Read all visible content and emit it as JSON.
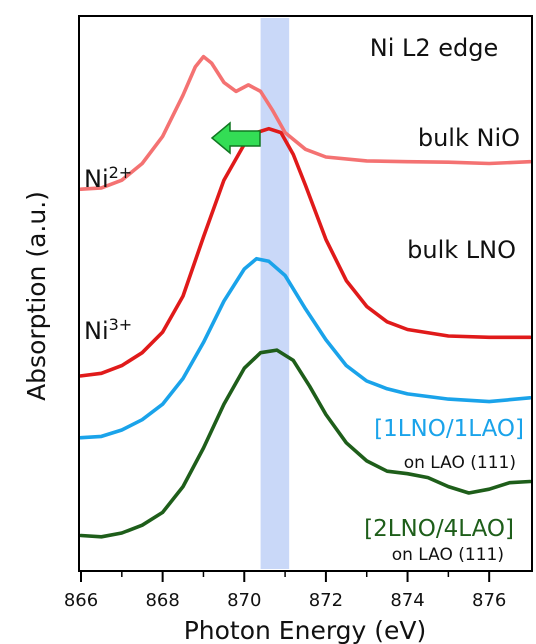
{
  "chart_data": {
    "type": "line",
    "title": "Ni L2 edge",
    "xlabel": "Photon Energy (eV)",
    "ylabel": "Absorption (a.u.)",
    "xlim": [
      866,
      877
    ],
    "xticks": [
      866,
      868,
      870,
      872,
      874,
      876
    ],
    "highlight_band": {
      "x": [
        870.4,
        871.1
      ],
      "color": "#c9d8f8"
    },
    "shift_arrow": {
      "color": "#33dd55",
      "direction": "left"
    },
    "labels": {
      "ni2": "Ni",
      "ni2_sup": "2+",
      "ni3": "Ni",
      "ni3_sup": "3+"
    },
    "series": [
      {
        "name": "bulk NiO",
        "color": "#f47272",
        "points": [
          [
            866.0,
            0.855
          ],
          [
            866.5,
            0.86
          ],
          [
            867.0,
            0.89
          ],
          [
            867.5,
            0.955
          ],
          [
            868.0,
            1.06
          ],
          [
            868.5,
            1.22
          ],
          [
            868.8,
            1.33
          ],
          [
            869.0,
            1.37
          ],
          [
            869.2,
            1.345
          ],
          [
            869.5,
            1.27
          ],
          [
            869.8,
            1.235
          ],
          [
            870.1,
            1.26
          ],
          [
            870.4,
            1.235
          ],
          [
            870.7,
            1.16
          ],
          [
            871.0,
            1.075
          ],
          [
            871.5,
            1.01
          ],
          [
            872.0,
            0.98
          ],
          [
            873.0,
            0.965
          ],
          [
            874.0,
            0.962
          ],
          [
            875.0,
            0.96
          ],
          [
            876.0,
            0.955
          ],
          [
            877.0,
            0.962
          ]
        ]
      },
      {
        "name": "bulk LNO",
        "color": "#e01a1a",
        "points": [
          [
            866.0,
            0.13
          ],
          [
            866.5,
            0.14
          ],
          [
            867.0,
            0.17
          ],
          [
            867.5,
            0.22
          ],
          [
            868.0,
            0.3
          ],
          [
            868.5,
            0.44
          ],
          [
            869.0,
            0.67
          ],
          [
            869.5,
            0.89
          ],
          [
            870.0,
            1.03
          ],
          [
            870.3,
            1.075
          ],
          [
            870.6,
            1.09
          ],
          [
            870.9,
            1.075
          ],
          [
            871.2,
            0.99
          ],
          [
            871.5,
            0.87
          ],
          [
            872.0,
            0.66
          ],
          [
            872.5,
            0.5
          ],
          [
            873.0,
            0.4
          ],
          [
            873.5,
            0.34
          ],
          [
            874.0,
            0.31
          ],
          [
            875.0,
            0.285
          ],
          [
            876.0,
            0.28
          ],
          [
            877.0,
            0.28
          ]
        ]
      },
      {
        "name": "[1LNO/1LAO]",
        "name_sub": "on LAO (111)",
        "color": "#1aa3ea",
        "points": [
          [
            866.0,
            -0.11
          ],
          [
            866.5,
            -0.105
          ],
          [
            867.0,
            -0.08
          ],
          [
            867.5,
            -0.04
          ],
          [
            868.0,
            0.02
          ],
          [
            868.5,
            0.12
          ],
          [
            869.0,
            0.26
          ],
          [
            869.5,
            0.42
          ],
          [
            870.0,
            0.545
          ],
          [
            870.3,
            0.585
          ],
          [
            870.6,
            0.575
          ],
          [
            871.0,
            0.52
          ],
          [
            871.5,
            0.39
          ],
          [
            872.0,
            0.27
          ],
          [
            872.5,
            0.17
          ],
          [
            873.0,
            0.11
          ],
          [
            873.5,
            0.08
          ],
          [
            874.0,
            0.06
          ],
          [
            875.0,
            0.04
          ],
          [
            876.0,
            0.03
          ],
          [
            877.0,
            0.045
          ]
        ]
      },
      {
        "name": "[2LNO/4LAO]",
        "name_sub": "on LAO (111)",
        "color": "#1e5e1a",
        "points": [
          [
            866.0,
            -0.49
          ],
          [
            866.5,
            -0.495
          ],
          [
            867.0,
            -0.48
          ],
          [
            867.5,
            -0.45
          ],
          [
            868.0,
            -0.4
          ],
          [
            868.5,
            -0.3
          ],
          [
            869.0,
            -0.15
          ],
          [
            869.5,
            0.02
          ],
          [
            870.0,
            0.16
          ],
          [
            870.4,
            0.22
          ],
          [
            870.8,
            0.23
          ],
          [
            871.2,
            0.19
          ],
          [
            871.6,
            0.09
          ],
          [
            872.0,
            -0.02
          ],
          [
            872.5,
            -0.13
          ],
          [
            873.0,
            -0.2
          ],
          [
            873.5,
            -0.24
          ],
          [
            874.0,
            -0.25
          ],
          [
            874.5,
            -0.265
          ],
          [
            875.0,
            -0.3
          ],
          [
            875.5,
            -0.325
          ],
          [
            876.0,
            -0.31
          ],
          [
            876.5,
            -0.285
          ],
          [
            877.0,
            -0.28
          ]
        ]
      }
    ]
  }
}
